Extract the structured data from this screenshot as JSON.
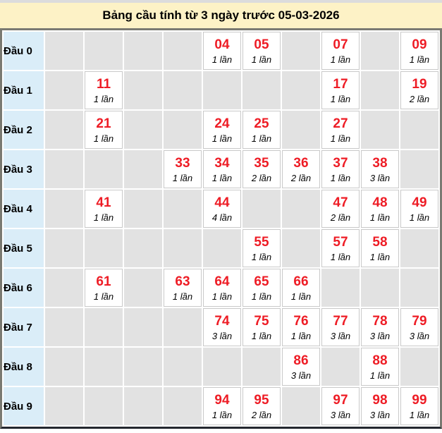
{
  "title": "Bảng cầu tính từ 3 ngày trước 05-03-2026",
  "count_unit": "lần",
  "colors": {
    "title_bg": "#fdf2c6",
    "top_strip": "#dcdcdc",
    "label_bg": "#daedf8",
    "empty_bg": "#e2e2e2",
    "filled_bg": "#ffffff",
    "number_red": "#ee1c25",
    "grid_border": "#c9c9c9",
    "outer_border": "#7a7a72",
    "outer_border_bottom": "#23272f"
  },
  "rows": [
    {
      "label": "Đầu 0",
      "cells": [
        null,
        null,
        null,
        null,
        {
          "num": "04",
          "count": "1 lần"
        },
        {
          "num": "05",
          "count": "1 lần"
        },
        null,
        {
          "num": "07",
          "count": "1 lần"
        },
        null,
        {
          "num": "09",
          "count": "1 lần"
        }
      ]
    },
    {
      "label": "Đầu 1",
      "cells": [
        null,
        {
          "num": "11",
          "count": "1 lần"
        },
        null,
        null,
        null,
        null,
        null,
        {
          "num": "17",
          "count": "1 lần"
        },
        null,
        {
          "num": "19",
          "count": "2 lần"
        }
      ]
    },
    {
      "label": "Đầu 2",
      "cells": [
        null,
        {
          "num": "21",
          "count": "1 lần"
        },
        null,
        null,
        {
          "num": "24",
          "count": "1 lần"
        },
        {
          "num": "25",
          "count": "1 lần"
        },
        null,
        {
          "num": "27",
          "count": "1 lần"
        },
        null,
        null
      ]
    },
    {
      "label": "Đầu 3",
      "cells": [
        null,
        null,
        null,
        {
          "num": "33",
          "count": "1 lần"
        },
        {
          "num": "34",
          "count": "1 lần"
        },
        {
          "num": "35",
          "count": "2 lần"
        },
        {
          "num": "36",
          "count": "2 lần"
        },
        {
          "num": "37",
          "count": "1 lần"
        },
        {
          "num": "38",
          "count": "3 lần"
        },
        null
      ]
    },
    {
      "label": "Đầu 4",
      "cells": [
        null,
        {
          "num": "41",
          "count": "1 lần"
        },
        null,
        null,
        {
          "num": "44",
          "count": "4 lần"
        },
        null,
        null,
        {
          "num": "47",
          "count": "2 lần"
        },
        {
          "num": "48",
          "count": "1 lần"
        },
        {
          "num": "49",
          "count": "1 lần"
        }
      ]
    },
    {
      "label": "Đầu 5",
      "cells": [
        null,
        null,
        null,
        null,
        null,
        {
          "num": "55",
          "count": "1 lần"
        },
        null,
        {
          "num": "57",
          "count": "1 lần"
        },
        {
          "num": "58",
          "count": "1 lần"
        },
        null
      ]
    },
    {
      "label": "Đầu 6",
      "cells": [
        null,
        {
          "num": "61",
          "count": "1 lần"
        },
        null,
        {
          "num": "63",
          "count": "1 lần"
        },
        {
          "num": "64",
          "count": "1 lần"
        },
        {
          "num": "65",
          "count": "1 lần"
        },
        {
          "num": "66",
          "count": "1 lần"
        },
        null,
        null,
        null
      ]
    },
    {
      "label": "Đầu 7",
      "cells": [
        null,
        null,
        null,
        null,
        {
          "num": "74",
          "count": "3 lần"
        },
        {
          "num": "75",
          "count": "1 lần"
        },
        {
          "num": "76",
          "count": "1 lần"
        },
        {
          "num": "77",
          "count": "3 lần"
        },
        {
          "num": "78",
          "count": "3 lần"
        },
        {
          "num": "79",
          "count": "3 lần"
        }
      ]
    },
    {
      "label": "Đầu 8",
      "cells": [
        null,
        null,
        null,
        null,
        null,
        null,
        {
          "num": "86",
          "count": "3 lần"
        },
        null,
        {
          "num": "88",
          "count": "1 lần"
        },
        null
      ]
    },
    {
      "label": "Đầu 9",
      "cells": [
        null,
        null,
        null,
        null,
        {
          "num": "94",
          "count": "1 lần"
        },
        {
          "num": "95",
          "count": "2 lần"
        },
        null,
        {
          "num": "97",
          "count": "3 lần"
        },
        {
          "num": "98",
          "count": "3 lần"
        },
        {
          "num": "99",
          "count": "1 lần"
        }
      ]
    }
  ]
}
